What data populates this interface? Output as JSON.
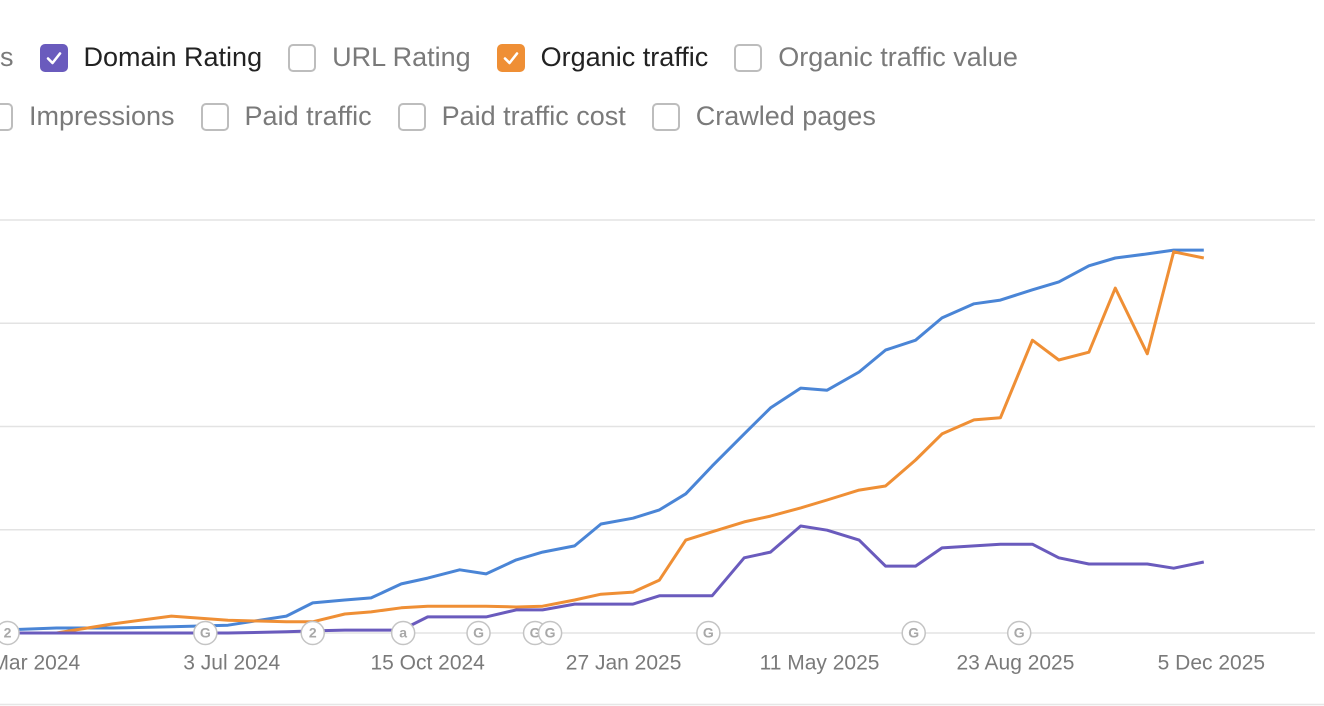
{
  "controls": {
    "rows": [
      [
        {
          "label": "s"
        },
        {
          "label": "Domain Rating",
          "checked": true,
          "color": "#6a5bbd"
        },
        {
          "label": "URL Rating"
        },
        {
          "label": "Organic traffic",
          "checked": true,
          "color": "#ef8f35"
        },
        {
          "label": "Organic traffic value"
        }
      ],
      [
        {
          "label": "Impressions"
        },
        {
          "label": "Paid traffic"
        },
        {
          "label": "Paid traffic cost"
        },
        {
          "label": "Crawled pages"
        }
      ]
    ]
  },
  "chart_data": {
    "type": "line",
    "x": [
      "2024-03-02",
      "2024-04-01",
      "2024-05-01",
      "2024-06-01",
      "2024-07-01",
      "2024-08-01",
      "2024-08-15",
      "2024-09-01",
      "2024-09-15",
      "2024-10-01",
      "2024-10-15",
      "2024-11-01",
      "2024-11-15",
      "2024-12-01",
      "2024-12-15",
      "2025-01-01",
      "2025-01-15",
      "2025-02-01",
      "2025-02-15",
      "2025-03-01",
      "2025-03-15",
      "2025-04-01",
      "2025-04-15",
      "2025-05-01",
      "2025-05-15",
      "2025-06-01",
      "2025-06-15",
      "2025-07-01",
      "2025-07-15",
      "2025-08-01",
      "2025-08-15",
      "2025-09-01",
      "2025-09-15",
      "2025-10-01",
      "2025-10-15",
      "2025-11-01",
      "2025-11-15",
      "2025-12-01"
    ],
    "series": [
      {
        "color": "#4a85d6",
        "values": [
          0.7,
          1.2,
          1.2,
          1.5,
          1.9,
          4.1,
          7.3,
          8.0,
          8.5,
          11.9,
          13.3,
          15.3,
          14.3,
          17.7,
          19.6,
          21.1,
          26.4,
          27.8,
          29.8,
          33.7,
          40.4,
          48.2,
          54.5,
          59.3,
          58.8,
          63.2,
          68.5,
          70.9,
          76.3,
          79.7,
          80.6,
          83.1,
          85.0,
          88.9,
          90.8,
          91.8,
          92.7,
          92.7
        ]
      },
      {
        "color": "#ef8f35",
        "values": [
          0,
          0,
          2.2,
          4.1,
          3.1,
          2.7,
          2.7,
          4.6,
          5.1,
          6.1,
          6.5,
          6.5,
          6.5,
          6.3,
          6.5,
          8.0,
          9.4,
          9.9,
          12.8,
          22.5,
          24.5,
          26.9,
          28.3,
          30.3,
          32.2,
          34.6,
          35.6,
          41.9,
          48.2,
          51.6,
          52.1,
          70.9,
          66.1,
          68.0,
          83.5,
          67.6,
          92.3,
          90.8
        ]
      },
      {
        "color": "#6a5bbd",
        "values": [
          0,
          0,
          0,
          0,
          0,
          0.3,
          0.5,
          0.7,
          0.7,
          0.7,
          3.9,
          3.9,
          3.9,
          5.6,
          5.6,
          7.0,
          7.0,
          7.0,
          9.0,
          9.0,
          9.0,
          18.2,
          19.6,
          25.9,
          24.9,
          22.5,
          16.2,
          16.2,
          20.6,
          21.1,
          21.5,
          21.5,
          18.2,
          16.7,
          16.7,
          16.7,
          15.7,
          17.2
        ]
      }
    ],
    "xlim": [
      "2024-03-02",
      "2026-01-29"
    ],
    "xticks": [
      {
        "value": "2024-03-21",
        "label": "Mar 2024"
      },
      {
        "value": "2024-07-03",
        "label": "3 Jul 2024"
      },
      {
        "value": "2024-10-15",
        "label": "15 Oct 2024"
      },
      {
        "value": "2025-01-27",
        "label": "27 Jan 2025"
      },
      {
        "value": "2025-05-11",
        "label": "11 May 2025"
      },
      {
        "value": "2025-08-23",
        "label": "23 Aug 2025"
      },
      {
        "value": "2025-12-05",
        "label": "5 Dec 2025"
      }
    ],
    "ylim": [
      0,
      100
    ],
    "yticks": [
      0,
      25,
      50,
      75,
      100
    ],
    "grid": true,
    "annotations": [
      {
        "x": "2024-03-06",
        "label": "2"
      },
      {
        "x": "2024-06-19",
        "label": "G"
      },
      {
        "x": "2024-08-15",
        "label": "2"
      },
      {
        "x": "2024-10-02",
        "label": "a"
      },
      {
        "x": "2024-11-11",
        "label": "G"
      },
      {
        "x": "2024-12-11",
        "label": "G"
      },
      {
        "x": "2024-12-19",
        "label": "G"
      },
      {
        "x": "2025-03-13",
        "label": "G"
      },
      {
        "x": "2025-06-30",
        "label": "G"
      },
      {
        "x": "2025-08-25",
        "label": "G"
      }
    ]
  }
}
